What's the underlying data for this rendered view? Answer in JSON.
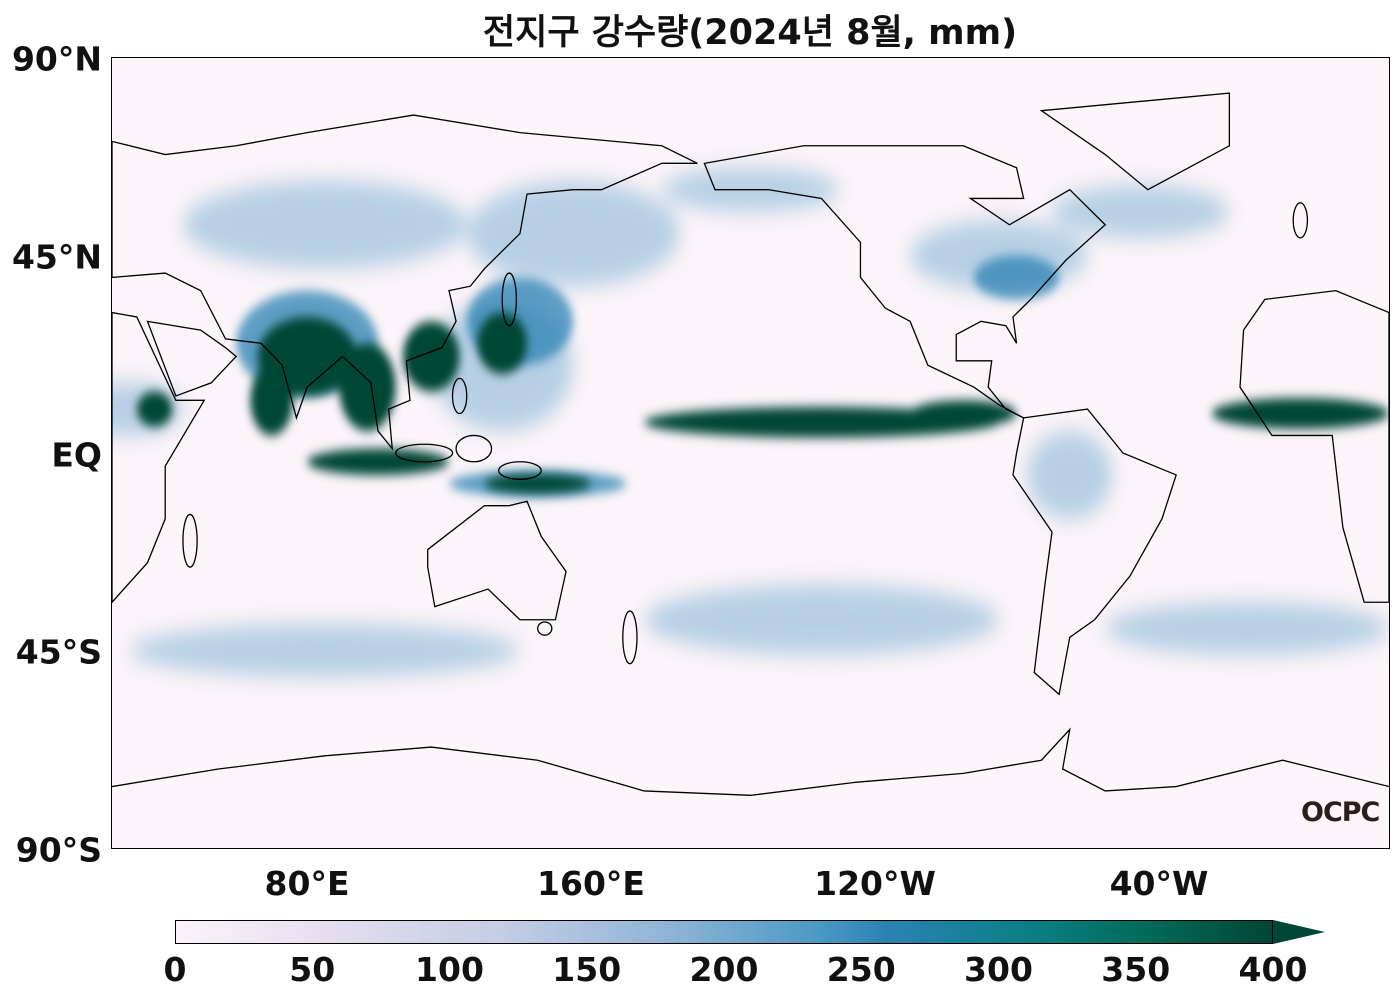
{
  "title": "전지구 강수량(2024년 8월, mm)",
  "y_axis_labels": [
    "90°N",
    "45°N",
    "EQ",
    "45°S",
    "90°S"
  ],
  "x_axis_labels": [
    "80°E",
    "160°E",
    "120°W",
    "40°W"
  ],
  "colorbar": {
    "ticks": [
      "0",
      "50",
      "100",
      "150",
      "200",
      "250",
      "300",
      "350",
      "400"
    ],
    "min": 0,
    "max": 400,
    "extend": "max",
    "colormap": "white-purple-blue-green",
    "colors": {
      "low": "#fbf3f9",
      "mid": "#2b82b3",
      "high": "#014636"
    }
  },
  "logo": "OCPC"
}
